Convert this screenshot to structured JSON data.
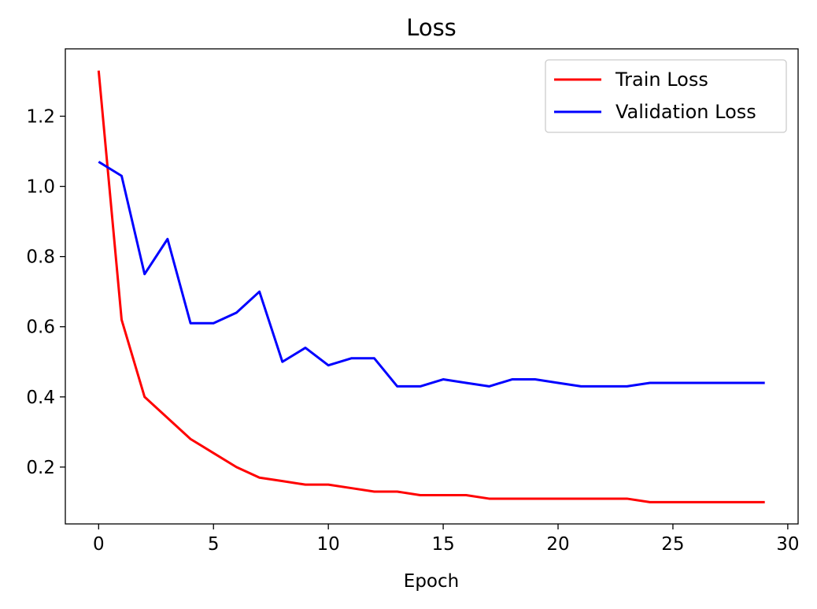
{
  "chart_data": {
    "type": "line",
    "title": "Loss",
    "xlabel": "Epoch",
    "ylabel": "",
    "xlim": [
      -1.45,
      30.45
    ],
    "ylim": [
      0.038,
      1.392
    ],
    "xticks": [
      0,
      5,
      10,
      15,
      20,
      25,
      30
    ],
    "yticks": [
      0.2,
      0.4,
      0.6,
      0.8,
      1.0,
      1.2
    ],
    "grid": false,
    "legend_position": "top-right",
    "x": [
      0,
      1,
      2,
      3,
      4,
      5,
      6,
      7,
      8,
      9,
      10,
      11,
      12,
      13,
      14,
      15,
      16,
      17,
      18,
      19,
      20,
      21,
      22,
      23,
      24,
      25,
      26,
      27,
      28,
      29
    ],
    "series": [
      {
        "name": "Train Loss",
        "color": "#ff0000",
        "values": [
          1.33,
          0.62,
          0.4,
          0.34,
          0.28,
          0.24,
          0.2,
          0.17,
          0.16,
          0.15,
          0.15,
          0.14,
          0.13,
          0.13,
          0.12,
          0.12,
          0.12,
          0.11,
          0.11,
          0.11,
          0.11,
          0.11,
          0.11,
          0.11,
          0.1,
          0.1,
          0.1,
          0.1,
          0.1,
          0.1
        ]
      },
      {
        "name": "Validation Loss",
        "color": "#0000ff",
        "values": [
          1.07,
          1.03,
          0.75,
          0.85,
          0.61,
          0.61,
          0.64,
          0.7,
          0.5,
          0.54,
          0.49,
          0.51,
          0.51,
          0.43,
          0.43,
          0.45,
          0.44,
          0.43,
          0.45,
          0.45,
          0.44,
          0.43,
          0.43,
          0.43,
          0.44,
          0.44,
          0.44,
          0.44,
          0.44,
          0.44
        ]
      }
    ]
  }
}
